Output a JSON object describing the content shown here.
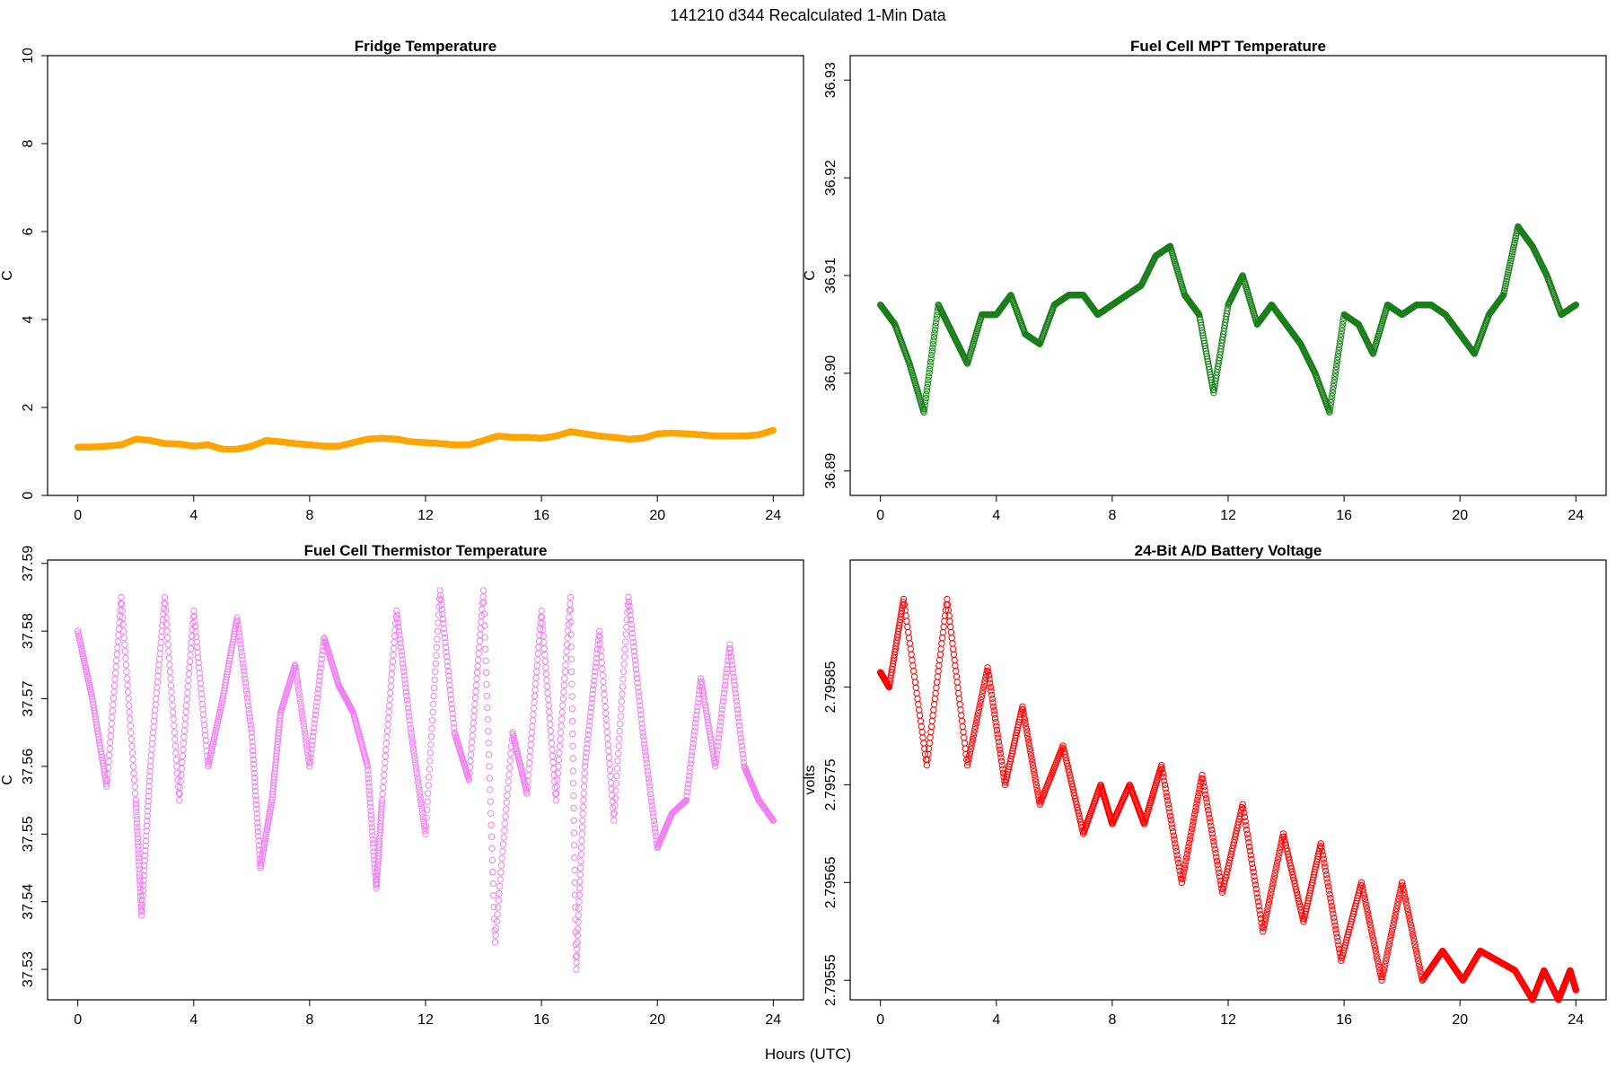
{
  "figure": {
    "title": "141210   d344   Recalculated 1-Min Data",
    "xlabel": "Hours (UTC)"
  },
  "chart_data": [
    {
      "type": "scatter",
      "title": "Fridge Temperature",
      "xlabel": "",
      "ylabel": "C",
      "xlim": [
        0,
        24
      ],
      "ylim": [
        0,
        10
      ],
      "x_ticks": [
        0,
        4,
        8,
        12,
        16,
        20,
        24
      ],
      "y_ticks": [
        0,
        2,
        4,
        6,
        8,
        10
      ],
      "y_tick_labels": [
        "0",
        "2",
        "4",
        "6",
        "8",
        "10"
      ],
      "marker": "open-circle",
      "color": "#FFA500",
      "series": [
        {
          "x": [
            0.0,
            0.5,
            1.0,
            1.5,
            2.0,
            2.5,
            3.0,
            3.5,
            4.0,
            4.5,
            5.0,
            5.5,
            6.0,
            6.5,
            7.0,
            7.5,
            8.0,
            8.5,
            9.0,
            9.5,
            10.0,
            10.5,
            11.0,
            11.5,
            12.0,
            12.5,
            13.0,
            13.5,
            14.0,
            14.5,
            15.0,
            15.5,
            16.0,
            16.5,
            17.0,
            17.5,
            18.0,
            18.5,
            19.0,
            19.5,
            20.0,
            20.5,
            21.0,
            21.5,
            22.0,
            22.5,
            23.0,
            23.5,
            24.0
          ],
          "y": [
            1.1,
            1.1,
            1.12,
            1.15,
            1.28,
            1.25,
            1.18,
            1.17,
            1.12,
            1.15,
            1.05,
            1.05,
            1.12,
            1.25,
            1.22,
            1.18,
            1.15,
            1.12,
            1.12,
            1.2,
            1.28,
            1.3,
            1.28,
            1.22,
            1.2,
            1.18,
            1.15,
            1.15,
            1.25,
            1.35,
            1.32,
            1.32,
            1.3,
            1.35,
            1.45,
            1.4,
            1.35,
            1.32,
            1.28,
            1.3,
            1.4,
            1.42,
            1.4,
            1.38,
            1.35,
            1.35,
            1.35,
            1.38,
            1.48
          ]
        }
      ]
    },
    {
      "type": "scatter",
      "title": "Fuel Cell MPT Temperature",
      "xlabel": "",
      "ylabel": "C",
      "xlim": [
        0,
        24
      ],
      "ylim": [
        36.8875,
        36.9325
      ],
      "x_ticks": [
        0,
        4,
        8,
        12,
        16,
        20,
        24
      ],
      "y_ticks": [
        36.89,
        36.9,
        36.91,
        36.92,
        36.93
      ],
      "y_tick_labels": [
        "36.89",
        "36.90",
        "36.91",
        "36.92",
        "36.93"
      ],
      "marker": "open-circle",
      "color": "#1A7F1A",
      "series": [
        {
          "x": [
            0.0,
            0.5,
            1.0,
            1.5,
            2.0,
            2.5,
            3.0,
            3.5,
            4.0,
            4.5,
            5.0,
            5.5,
            6.0,
            6.5,
            7.0,
            7.5,
            8.0,
            8.5,
            9.0,
            9.5,
            10.0,
            10.5,
            11.0,
            11.5,
            12.0,
            12.5,
            13.0,
            13.5,
            14.0,
            14.5,
            15.0,
            15.5,
            16.0,
            16.5,
            17.0,
            17.5,
            18.0,
            18.5,
            19.0,
            19.5,
            20.0,
            20.5,
            21.0,
            21.5,
            22.0,
            22.5,
            23.0,
            23.5,
            24.0
          ],
          "y": [
            36.907,
            36.905,
            36.901,
            36.896,
            36.907,
            36.904,
            36.901,
            36.906,
            36.906,
            36.908,
            36.904,
            36.903,
            36.907,
            36.908,
            36.908,
            36.906,
            36.907,
            36.908,
            36.909,
            36.912,
            36.913,
            36.908,
            36.906,
            36.898,
            36.907,
            36.91,
            36.905,
            36.907,
            36.905,
            36.903,
            36.9,
            36.896,
            36.906,
            36.905,
            36.902,
            36.907,
            36.906,
            36.907,
            36.907,
            36.906,
            36.904,
            36.902,
            36.906,
            36.908,
            36.915,
            36.913,
            36.91,
            36.906,
            36.907
          ]
        }
      ]
    },
    {
      "type": "scatter",
      "title": "Fuel Cell Thermistor Temperature",
      "xlabel": "",
      "ylabel": "C",
      "xlim": [
        0,
        24
      ],
      "ylim": [
        37.5255,
        37.5905
      ],
      "x_ticks": [
        0,
        4,
        8,
        12,
        16,
        20,
        24
      ],
      "y_ticks": [
        37.53,
        37.54,
        37.55,
        37.56,
        37.57,
        37.58,
        37.59
      ],
      "y_tick_labels": [
        "37.53",
        "37.54",
        "37.55",
        "37.56",
        "37.57",
        "37.58",
        "37.59"
      ],
      "marker": "open-circle",
      "color": "#EE82EE",
      "series": [
        {
          "x": [
            0.0,
            0.5,
            1.0,
            1.5,
            2.0,
            2.2,
            2.5,
            3.0,
            3.5,
            4.0,
            4.5,
            5.0,
            5.5,
            6.0,
            6.3,
            6.7,
            7.0,
            7.5,
            8.0,
            8.5,
            9.0,
            9.5,
            10.0,
            10.3,
            10.5,
            11.0,
            11.5,
            12.0,
            12.5,
            13.0,
            13.5,
            14.0,
            14.4,
            15.0,
            15.5,
            16.0,
            16.5,
            17.0,
            17.2,
            17.5,
            18.0,
            18.5,
            19.0,
            19.5,
            20.0,
            20.5,
            21.0,
            21.5,
            22.0,
            22.5,
            23.0,
            23.5,
            24.0
          ],
          "y": [
            37.58,
            37.57,
            37.557,
            37.585,
            37.555,
            37.538,
            37.56,
            37.585,
            37.555,
            37.583,
            37.56,
            37.57,
            37.582,
            37.565,
            37.545,
            37.555,
            37.568,
            37.575,
            37.56,
            37.579,
            37.572,
            37.568,
            37.56,
            37.542,
            37.555,
            37.583,
            37.565,
            37.55,
            37.586,
            37.565,
            37.558,
            37.586,
            37.534,
            37.565,
            37.556,
            37.583,
            37.555,
            37.585,
            37.53,
            37.56,
            37.58,
            37.552,
            37.585,
            37.565,
            37.548,
            37.553,
            37.555,
            37.573,
            37.56,
            37.578,
            37.56,
            37.555,
            37.552
          ]
        }
      ]
    },
    {
      "type": "scatter",
      "title": "24-Bit A/D Battery Voltage",
      "xlabel": "",
      "ylabel": "volts",
      "xlim": [
        0,
        24
      ],
      "ylim": [
        2.79553,
        2.79598
      ],
      "x_ticks": [
        0,
        4,
        8,
        12,
        16,
        20,
        24
      ],
      "y_ticks": [
        2.79555,
        2.79565,
        2.79575,
        2.79585
      ],
      "y_tick_labels": [
        "2.79555",
        "2.79565",
        "2.79575",
        "2.79585"
      ],
      "marker": "open-circle",
      "color": "#FF0000",
      "series": [
        {
          "x": [
            0.0,
            0.3,
            0.8,
            1.6,
            2.3,
            3.0,
            3.7,
            4.3,
            4.9,
            5.5,
            6.3,
            7.0,
            7.6,
            8.0,
            8.6,
            9.1,
            9.7,
            10.4,
            11.1,
            11.8,
            12.5,
            13.2,
            13.9,
            14.6,
            15.2,
            15.9,
            16.6,
            17.3,
            18.0,
            18.7,
            19.4,
            20.1,
            20.7,
            21.3,
            21.9,
            22.5,
            22.9,
            23.4,
            23.8,
            24.0
          ],
          "y": [
            2.795865,
            2.79585,
            2.79594,
            2.79577,
            2.79594,
            2.79577,
            2.79587,
            2.79575,
            2.79583,
            2.79573,
            2.79579,
            2.7957,
            2.79575,
            2.79571,
            2.79575,
            2.79571,
            2.79577,
            2.79565,
            2.79576,
            2.79564,
            2.79573,
            2.7956,
            2.7957,
            2.79561,
            2.79569,
            2.79557,
            2.79565,
            2.79555,
            2.79565,
            2.79555,
            2.79558,
            2.79555,
            2.79558,
            2.79557,
            2.79556,
            2.79553,
            2.79556,
            2.79553,
            2.79556,
            2.79554
          ]
        }
      ]
    }
  ]
}
